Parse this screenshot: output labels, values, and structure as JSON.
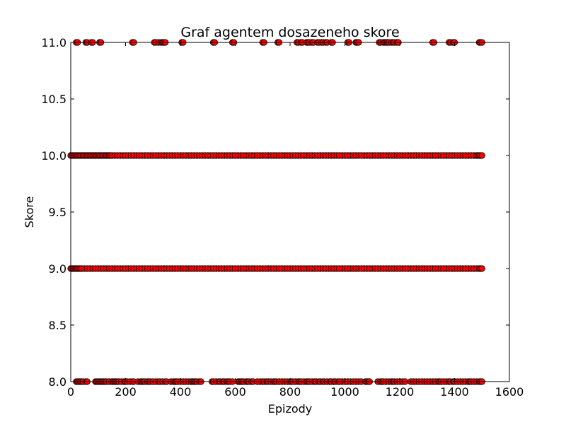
{
  "chart_data": {
    "type": "scatter",
    "title": "Graf agentem dosazeneho skore",
    "xlabel": "Epizody",
    "ylabel": "Skore",
    "xlim": [
      0,
      1600
    ],
    "ylim": [
      8.0,
      11.0
    ],
    "xticks": [
      0,
      200,
      400,
      600,
      800,
      1000,
      1200,
      1400,
      1600
    ],
    "xtick_labels": [
      "0",
      "200",
      "400",
      "600",
      "800",
      "1000",
      "1200",
      "1400",
      "1600"
    ],
    "yticks": [
      8.0,
      8.5,
      9.0,
      9.5,
      10.0,
      10.5,
      11.0
    ],
    "ytick_labels": [
      "8.0",
      "8.5",
      "9.0",
      "9.5",
      "10.0",
      "10.5",
      "11.0"
    ],
    "grid": false,
    "marker_color": "#ff0000",
    "marker_edge_color": "#000000",
    "series": [
      {
        "y": 11.0,
        "x": [
          20,
          25,
          55,
          60,
          75,
          80,
          105,
          110,
          225,
          230,
          305,
          310,
          320,
          330,
          335,
          340,
          345,
          405,
          410,
          520,
          525,
          590,
          595,
          700,
          705,
          755,
          760,
          825,
          830,
          840,
          845,
          860,
          865,
          870,
          880,
          885,
          900,
          905,
          915,
          920,
          930,
          935,
          950,
          955,
          1010,
          1015,
          1040,
          1045,
          1050,
          1125,
          1130,
          1140,
          1145,
          1150,
          1155,
          1160,
          1170,
          1175,
          1180,
          1190,
          1195,
          1320,
          1325,
          1380,
          1385,
          1395,
          1400,
          1490,
          1495,
          1500
        ]
      },
      {
        "y": 10.0,
        "x": [
          0,
          5,
          10,
          15,
          20,
          25,
          30,
          35,
          40,
          45,
          50,
          55,
          60,
          65,
          70,
          75,
          80,
          85,
          90,
          95,
          100,
          105,
          110,
          115,
          120,
          125,
          130,
          135,
          140,
          145,
          150,
          160,
          170,
          180,
          190,
          200,
          210,
          220,
          230,
          240,
          250,
          260,
          270,
          280,
          290,
          300,
          310,
          320,
          330,
          340,
          350,
          360,
          370,
          380,
          390,
          400,
          410,
          420,
          430,
          440,
          450,
          460,
          470,
          480,
          490,
          500,
          510,
          520,
          530,
          540,
          550,
          560,
          570,
          580,
          590,
          600,
          610,
          620,
          630,
          640,
          650,
          660,
          670,
          680,
          690,
          700,
          710,
          720,
          730,
          740,
          750,
          760,
          770,
          780,
          790,
          800,
          810,
          820,
          830,
          840,
          850,
          860,
          870,
          880,
          890,
          900,
          910,
          920,
          930,
          940,
          950,
          960,
          970,
          980,
          990,
          1000,
          1010,
          1020,
          1030,
          1040,
          1050,
          1060,
          1070,
          1080,
          1090,
          1100,
          1110,
          1120,
          1130,
          1140,
          1150,
          1160,
          1170,
          1180,
          1190,
          1200,
          1210,
          1220,
          1230,
          1240,
          1250,
          1260,
          1270,
          1280,
          1290,
          1300,
          1310,
          1320,
          1330,
          1340,
          1350,
          1360,
          1370,
          1380,
          1390,
          1400,
          1410,
          1420,
          1430,
          1440,
          1450,
          1460,
          1470,
          1480,
          1485,
          1490,
          1495,
          1500
        ]
      },
      {
        "y": 9.0,
        "x": [
          0,
          5,
          10,
          15,
          20,
          25,
          30,
          35,
          40,
          50,
          60,
          70,
          80,
          90,
          100,
          110,
          120,
          130,
          140,
          150,
          160,
          170,
          180,
          190,
          200,
          210,
          220,
          230,
          240,
          250,
          260,
          270,
          280,
          290,
          300,
          310,
          320,
          330,
          340,
          350,
          360,
          370,
          380,
          390,
          400,
          410,
          420,
          430,
          440,
          450,
          460,
          470,
          480,
          490,
          500,
          510,
          520,
          530,
          540,
          550,
          560,
          570,
          580,
          590,
          600,
          610,
          620,
          630,
          640,
          650,
          660,
          670,
          680,
          690,
          700,
          710,
          720,
          730,
          740,
          750,
          760,
          770,
          780,
          790,
          800,
          810,
          820,
          830,
          840,
          850,
          860,
          870,
          880,
          890,
          900,
          910,
          920,
          930,
          940,
          950,
          960,
          970,
          980,
          990,
          1000,
          1010,
          1020,
          1030,
          1040,
          1050,
          1060,
          1070,
          1080,
          1090,
          1100,
          1110,
          1120,
          1130,
          1140,
          1150,
          1160,
          1170,
          1180,
          1190,
          1200,
          1210,
          1220,
          1230,
          1240,
          1250,
          1260,
          1270,
          1280,
          1290,
          1300,
          1310,
          1320,
          1330,
          1340,
          1350,
          1360,
          1370,
          1380,
          1390,
          1400,
          1410,
          1420,
          1430,
          1440,
          1450,
          1460,
          1470,
          1480,
          1490,
          1495,
          1500
        ]
      },
      {
        "y": 8.0,
        "x": [
          20,
          25,
          30,
          35,
          40,
          45,
          55,
          60,
          90,
          95,
          100,
          105,
          110,
          115,
          120,
          125,
          130,
          140,
          150,
          155,
          160,
          165,
          170,
          175,
          185,
          195,
          200,
          205,
          215,
          225,
          230,
          245,
          255,
          260,
          265,
          270,
          280,
          285,
          290,
          300,
          310,
          320,
          325,
          335,
          345,
          350,
          365,
          375,
          380,
          385,
          390,
          400,
          410,
          420,
          430,
          440,
          445,
          450,
          455,
          460,
          470,
          475,
          515,
          520,
          530,
          540,
          545,
          555,
          560,
          570,
          575,
          580,
          590,
          610,
          615,
          620,
          625,
          630,
          640,
          645,
          650,
          660,
          665,
          680,
          690,
          700,
          705,
          715,
          720,
          730,
          740,
          745,
          750,
          760,
          770,
          780,
          790,
          800,
          805,
          810,
          820,
          830,
          835,
          840,
          850,
          860,
          865,
          870,
          880,
          890,
          895,
          905,
          910,
          920,
          925,
          935,
          945,
          950,
          960,
          965,
          975,
          980,
          990,
          1000,
          1010,
          1020,
          1030,
          1040,
          1050,
          1060,
          1075,
          1080,
          1085,
          1090,
          1120,
          1130,
          1135,
          1140,
          1150,
          1160,
          1170,
          1175,
          1180,
          1190,
          1200,
          1210,
          1220,
          1240,
          1250,
          1260,
          1270,
          1280,
          1290,
          1300,
          1310,
          1320,
          1330,
          1340,
          1345,
          1350,
          1360,
          1370,
          1380,
          1385,
          1395,
          1400,
          1410,
          1420,
          1430,
          1440,
          1450,
          1455,
          1460,
          1470,
          1480,
          1490,
          1495,
          1500
        ]
      }
    ]
  }
}
